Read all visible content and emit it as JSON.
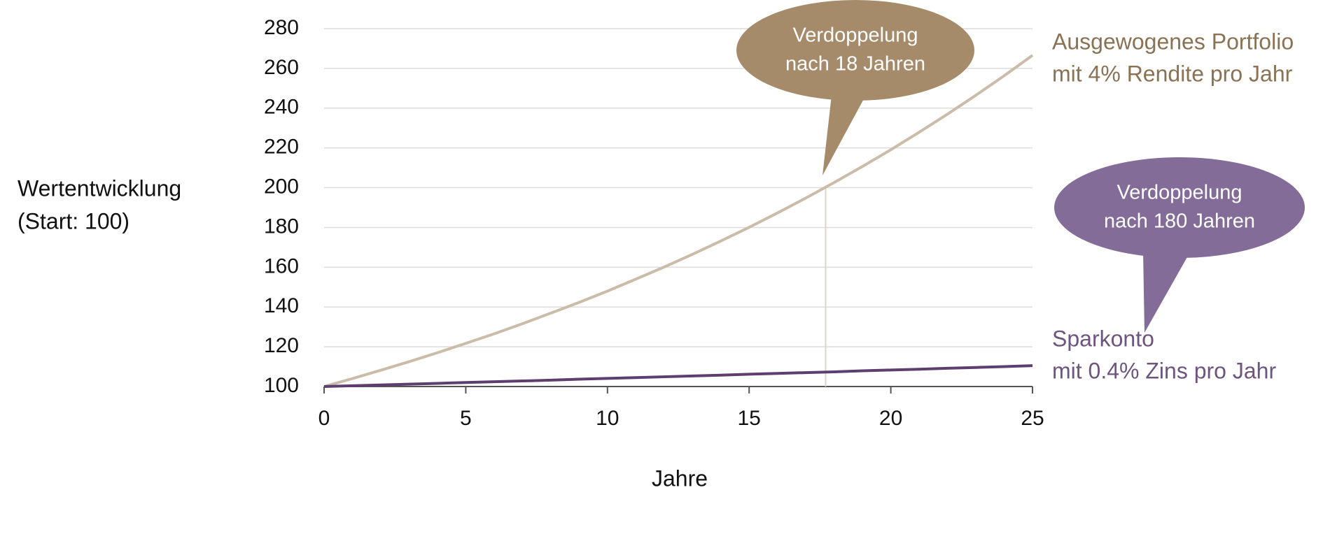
{
  "chart_data": {
    "type": "line",
    "y_label_lines": [
      "Wertentwicklung",
      "(Start: 100)"
    ],
    "x_label": "Jahre",
    "x": [
      0,
      1,
      2,
      3,
      4,
      5,
      6,
      7,
      8,
      9,
      10,
      11,
      12,
      13,
      14,
      15,
      16,
      17,
      18,
      19,
      20,
      21,
      22,
      23,
      24,
      25
    ],
    "series": [
      {
        "name_lines": [
          "Ausgewogenes Portfolio",
          "mit 4% Rendite pro Jahr"
        ],
        "color": "#cbbca9",
        "label_color": "#8a7254",
        "values": [
          100,
          104,
          108.2,
          112.5,
          117,
          121.7,
          126.5,
          131.6,
          136.9,
          142.3,
          148,
          154,
          160.1,
          166.5,
          173.2,
          180.1,
          187.3,
          194.8,
          202.6,
          210.7,
          219.1,
          227.9,
          237,
          246.5,
          256.3,
          266.6
        ]
      },
      {
        "name_lines": [
          "Sparkonto",
          "mit 0.4% Zins pro Jahr"
        ],
        "color": "#5e3e6e",
        "label_color": "#6d5580",
        "values": [
          100,
          100.4,
          100.8,
          101.2,
          101.6,
          102,
          102.4,
          102.8,
          103.2,
          103.7,
          104.1,
          104.5,
          104.9,
          105.3,
          105.7,
          106.2,
          106.6,
          107,
          107.4,
          107.9,
          108.3,
          108.7,
          109.2,
          109.6,
          110,
          110.5
        ]
      }
    ],
    "annotations": [
      {
        "text_lines": [
          "Verdoppelung",
          "nach 18 Jahren"
        ],
        "color": "#a68b6a",
        "marker_x": 17.7,
        "marker_y": 200
      },
      {
        "text_lines": [
          "Verdoppelung",
          "nach 180 Jahren"
        ],
        "color": "#836c98"
      }
    ],
    "xlim": [
      0,
      25
    ],
    "xticks": [
      0,
      5,
      10,
      15,
      20,
      25
    ],
    "ylim": [
      100,
      280
    ],
    "yticks": [
      100,
      120,
      140,
      160,
      180,
      200,
      220,
      240,
      260,
      280
    ],
    "grid": true
  }
}
